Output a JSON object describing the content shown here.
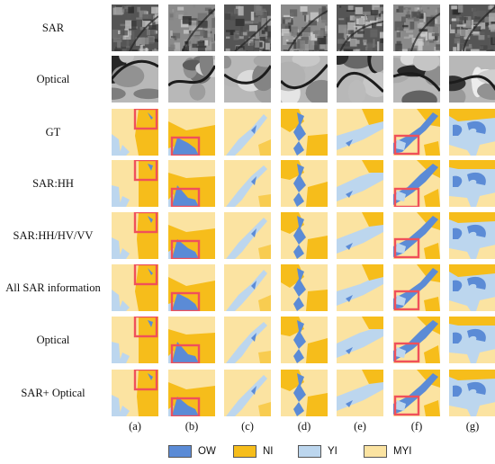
{
  "rows": [
    "SAR",
    "Optical",
    "GT",
    "SAR:HH",
    "SAR:HH/HV/VV",
    "All SAR information",
    "Optical",
    "SAR+ Optical"
  ],
  "columns": [
    "(a)",
    "(b)",
    "(c)",
    "(d)",
    "(e)",
    "(f)",
    "(g)"
  ],
  "legend": [
    {
      "label": "OW",
      "color": "#5b8bd6"
    },
    {
      "label": "NI",
      "color": "#f6bd1b"
    },
    {
      "label": "YI",
      "color": "#bcd6ee"
    },
    {
      "label": "MYI",
      "color": "#fbe3a1"
    }
  ],
  "highlight_color": "#f0505a"
}
